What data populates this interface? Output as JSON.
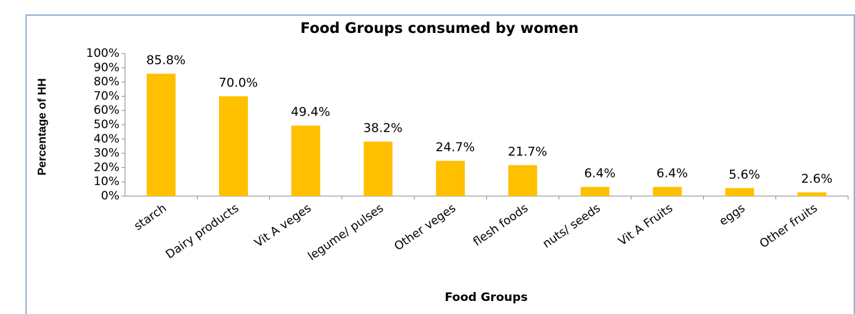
{
  "chart_data": {
    "type": "bar",
    "title": "Food Groups consumed by women",
    "x_label": "Food Groups",
    "y_label": "Percentage of HH",
    "categories": [
      "starch",
      "Dairy products",
      "Vit A veges",
      "legume/ pulses",
      "Other veges",
      "flesh foods",
      "nuts/ seeds",
      "Vit A Fruits",
      "eggs",
      "Other fruits"
    ],
    "values": [
      85.8,
      70.0,
      49.4,
      38.2,
      24.7,
      21.7,
      6.4,
      6.4,
      5.6,
      2.6
    ],
    "value_labels": [
      "85.8%",
      "70.0%",
      "49.4%",
      "38.2%",
      "24.7%",
      "21.7%",
      "6.4%",
      "6.4%",
      "5.6%",
      "2.6%"
    ],
    "color": "#FFC000",
    "ylim": [
      0,
      100
    ],
    "yticks": [
      {
        "value": 0,
        "label": "0%"
      },
      {
        "value": 10,
        "label": "10%"
      },
      {
        "value": 20,
        "label": "20%"
      },
      {
        "value": 30,
        "label": "30%"
      },
      {
        "value": 40,
        "label": "40%"
      },
      {
        "value": 50,
        "label": "50%"
      },
      {
        "value": 60,
        "label": "60%"
      },
      {
        "value": 70,
        "label": "70%"
      },
      {
        "value": 80,
        "label": "80%"
      },
      {
        "value": 90,
        "label": "90%"
      },
      {
        "value": 100,
        "label": "100%"
      }
    ],
    "grid": false
  }
}
